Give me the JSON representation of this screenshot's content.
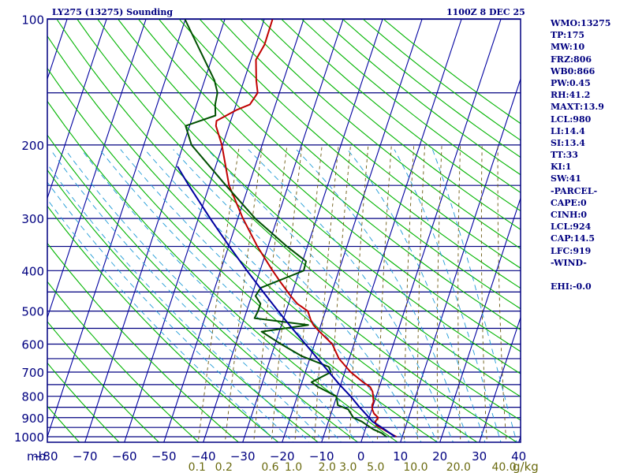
{
  "header": {
    "station": "LY275 (13275) Sounding",
    "time": "1100Z  8 DEC 25"
  },
  "units": {
    "pressure": "mb",
    "mixing_ratio": "g/kg"
  },
  "indices": [
    "WMO:13275",
    "TP:175",
    "MW:10",
    "FRZ:806",
    "WB0:866",
    "PW:0.45",
    "RH:41.2",
    "MAXT:13.9",
    "LCL:980",
    "LI:14.4",
    "SI:13.4",
    "TT:33",
    "KI:1",
    "SW:41",
    "-PARCEL-",
    "CAPE:0",
    "CINH:0",
    "LCL:924",
    "CAP:14.5",
    "LFC:919",
    "-WIND-",
    "",
    "EHI:-0.0"
  ],
  "colors": {
    "frame": "#000080",
    "isobar": "#000080",
    "isotherm": "#0000a0",
    "dry_adiabat": "#00b400",
    "moist_adiabat": "#1e9ad6",
    "mixing_ratio": "#6b5a10",
    "temperature": "#c00000",
    "dewpoint": "#005000",
    "parcel": "#0000a0",
    "mixing_ratio_labels": "#6b6b10"
  },
  "chart_data": {
    "type": "line",
    "title": "LY275 (13275) Sounding",
    "xlabel": "",
    "ylabel": "mb",
    "x_ticks": [
      -80,
      -70,
      -60,
      -50,
      -40,
      -30,
      -20,
      -10,
      0,
      10,
      20,
      30,
      40
    ],
    "y_ticks": [
      100,
      200,
      300,
      400,
      500,
      600,
      700,
      800,
      900,
      1000
    ],
    "xlim": [
      -80,
      40
    ],
    "ylim": [
      1050,
      100
    ],
    "y_scale": "log",
    "mixing_ratio_labels": [
      "0.1",
      "0.2",
      "0.6",
      "1.0",
      "2.0",
      "3.0",
      "5.0",
      "10.0",
      "20.0",
      "40.0"
    ],
    "series": [
      {
        "name": "temperature",
        "x_units": "C (skewed)",
        "points": [
          [
            1000,
            8.5
          ],
          [
            990,
            7.5
          ],
          [
            980,
            6.5
          ],
          [
            960,
            4.6
          ],
          [
            940,
            2.5
          ],
          [
            920,
            1.9
          ],
          [
            900,
            2.3
          ],
          [
            880,
            0.9
          ],
          [
            860,
            0.1
          ],
          [
            840,
            -0.3
          ],
          [
            825,
            -0.2
          ],
          [
            800,
            -0.8
          ],
          [
            780,
            -1.3
          ],
          [
            760,
            -2.3
          ],
          [
            740,
            -4.5
          ],
          [
            700,
            -8.5
          ],
          [
            650,
            -12.6
          ],
          [
            600,
            -15.5
          ],
          [
            560,
            -19.8
          ],
          [
            540,
            -21.9
          ],
          [
            525,
            -23.0
          ],
          [
            500,
            -24.5
          ],
          [
            480,
            -27.8
          ],
          [
            460,
            -30.1
          ],
          [
            430,
            -33.4
          ],
          [
            400,
            -36.8
          ],
          [
            350,
            -42.7
          ],
          [
            300,
            -48.7
          ],
          [
            250,
            -55.0
          ],
          [
            200,
            -60.2
          ],
          [
            180,
            -63.3
          ],
          [
            175,
            -63.6
          ],
          [
            165,
            -59.5
          ],
          [
            160,
            -56.5
          ],
          [
            150,
            -55.5
          ],
          [
            140,
            -56.9
          ],
          [
            125,
            -58.7
          ],
          [
            115,
            -57.8
          ],
          [
            100,
            -57.9
          ]
        ]
      },
      {
        "name": "dewpoint",
        "x_units": "C (skewed)",
        "points": [
          [
            1000,
            6.0
          ],
          [
            980,
            4.5
          ],
          [
            960,
            2.0
          ],
          [
            920,
            -1.5
          ],
          [
            900,
            -4.0
          ],
          [
            860,
            -6.0
          ],
          [
            840,
            -9.0
          ],
          [
            800,
            -10.1
          ],
          [
            760,
            -15.5
          ],
          [
            740,
            -17.6
          ],
          [
            700,
            -13.5
          ],
          [
            680,
            -14.5
          ],
          [
            640,
            -22.4
          ],
          [
            600,
            -28.5
          ],
          [
            560,
            -34.5
          ],
          [
            540,
            -23.2
          ],
          [
            520,
            -37.4
          ],
          [
            500,
            -37.1
          ],
          [
            480,
            -37.1
          ],
          [
            460,
            -39.0
          ],
          [
            440,
            -38.4
          ],
          [
            400,
            -28.9
          ],
          [
            380,
            -29.1
          ],
          [
            350,
            -35.2
          ],
          [
            300,
            -45.6
          ],
          [
            250,
            -55.8
          ],
          [
            200,
            -67.9
          ],
          [
            180,
            -71.0
          ],
          [
            170,
            -64.3
          ],
          [
            160,
            -65.3
          ],
          [
            150,
            -65.7
          ],
          [
            140,
            -67.5
          ],
          [
            100,
            -80.1
          ]
        ]
      },
      {
        "name": "parcel",
        "x_units": "C (skewed)",
        "points": [
          [
            1000,
            8.2
          ],
          [
            950,
            4.0
          ],
          [
            920,
            1.2
          ],
          [
            900,
            0.0
          ],
          [
            850,
            -3.3
          ],
          [
            800,
            -6.5
          ],
          [
            750,
            -10.3
          ],
          [
            700,
            -14.0
          ],
          [
            650,
            -18.0
          ],
          [
            600,
            -22.3
          ],
          [
            550,
            -27.0
          ],
          [
            500,
            -32.0
          ],
          [
            450,
            -37.4
          ],
          [
            400,
            -43.3
          ],
          [
            350,
            -49.8
          ],
          [
            300,
            -57.0
          ],
          [
            250,
            -65.2
          ],
          [
            225,
            -69.7
          ]
        ]
      }
    ]
  }
}
